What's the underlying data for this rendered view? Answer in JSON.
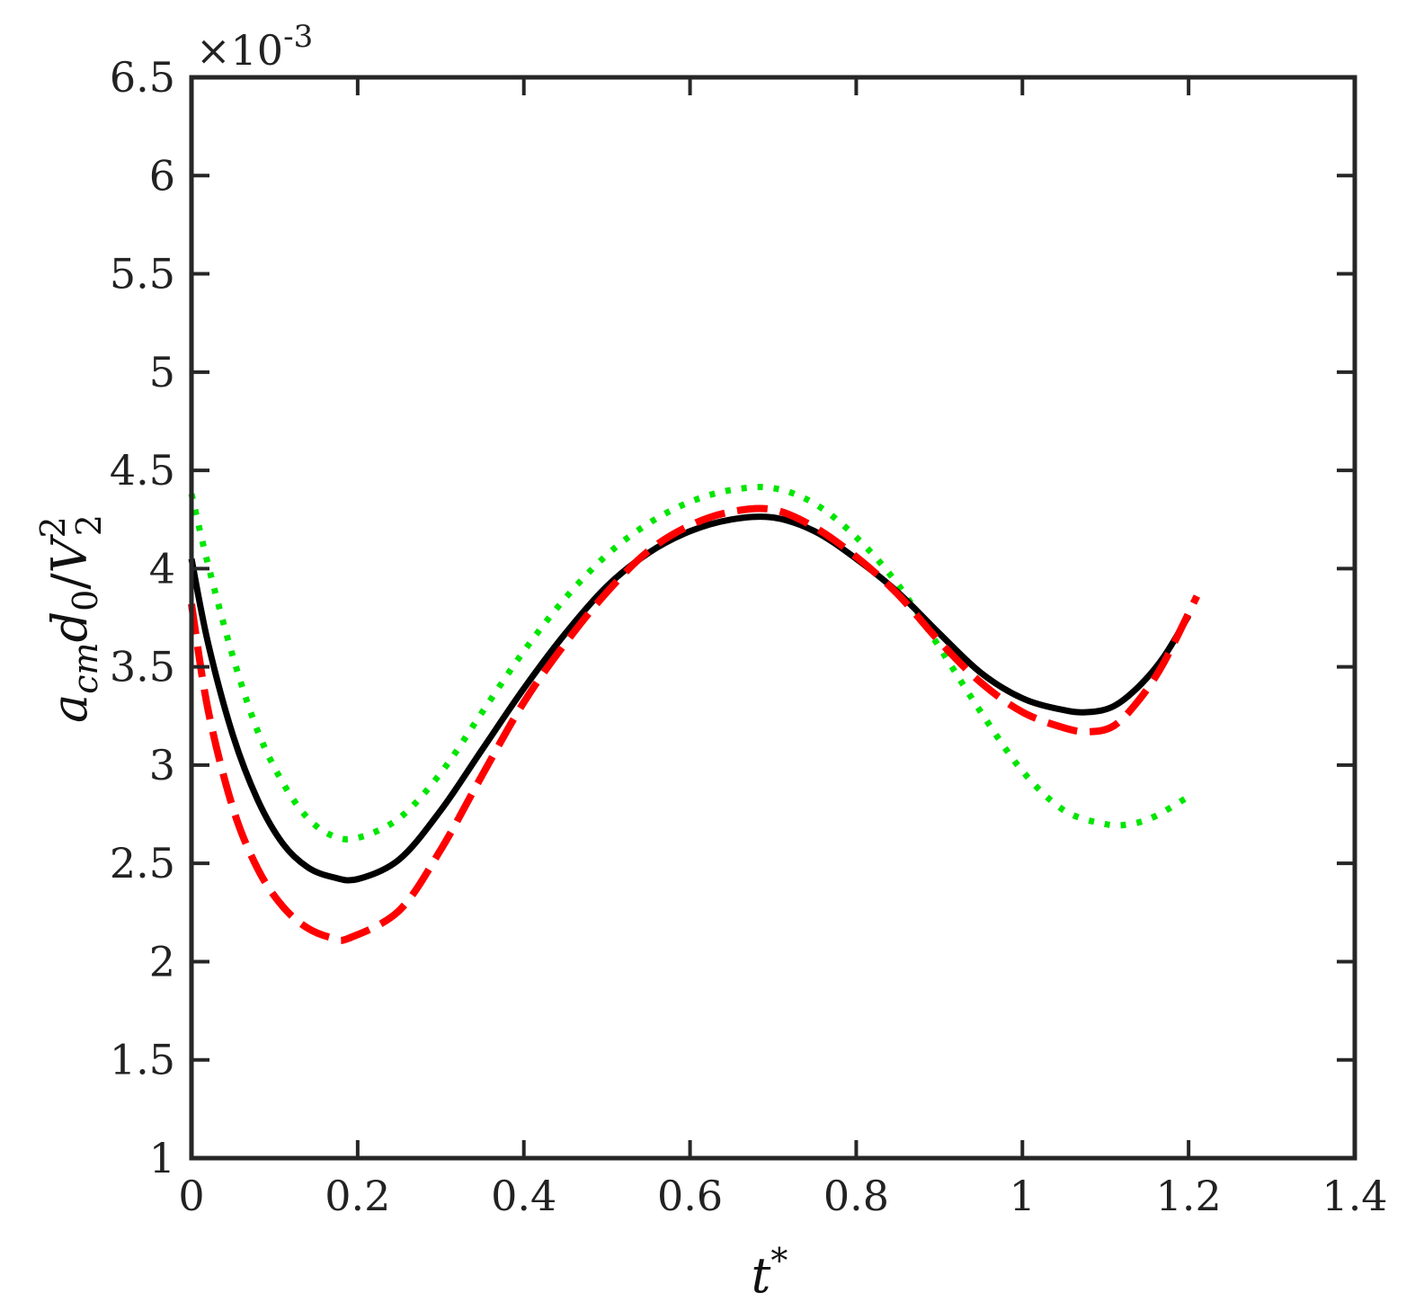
{
  "chart_data": {
    "type": "line",
    "title": "",
    "xlabel": {
      "base": "t",
      "sup": "*"
    },
    "ylabel": {
      "a": "a",
      "a_sub": "cm",
      "d": "d",
      "d_sub": "0",
      "slash": "/",
      "V": "V",
      "V_sub": "2",
      "V_sup": "2"
    },
    "y_exponent": {
      "times": "×10",
      "power": "-3"
    },
    "xlim": [
      0,
      1.4
    ],
    "ylim": [
      1,
      6.5
    ],
    "x_ticks": [
      0,
      0.2,
      0.4,
      0.6,
      0.8,
      1,
      1.2,
      1.4
    ],
    "x_tick_labels": [
      "0",
      "0.2",
      "0.4",
      "0.6",
      "0.8",
      "1",
      "1.2",
      "1.4"
    ],
    "y_ticks": [
      1,
      1.5,
      2,
      2.5,
      3,
      3.5,
      4,
      4.5,
      5,
      5.5,
      6,
      6.5
    ],
    "y_tick_labels": [
      "1",
      "1.5",
      "2",
      "2.5",
      "3",
      "3.5",
      "4",
      "4.5",
      "5",
      "5.5",
      "6",
      "6.5"
    ],
    "grid": false,
    "series": [
      {
        "color": "#00e600",
        "style": "dotted",
        "x": [
          0.0,
          0.02,
          0.05,
          0.08,
          0.11,
          0.14,
          0.17,
          0.2,
          0.25,
          0.3,
          0.35,
          0.4,
          0.45,
          0.5,
          0.55,
          0.6,
          0.65,
          0.7,
          0.75,
          0.8,
          0.85,
          0.9,
          0.95,
          1.0,
          1.05,
          1.1,
          1.13,
          1.16,
          1.2
        ],
        "y": [
          4.38,
          4.02,
          3.55,
          3.17,
          2.91,
          2.73,
          2.64,
          2.63,
          2.73,
          2.96,
          3.27,
          3.58,
          3.85,
          4.07,
          4.23,
          4.34,
          4.4,
          4.41,
          4.33,
          4.16,
          3.92,
          3.6,
          3.27,
          2.97,
          2.77,
          2.7,
          2.7,
          2.74,
          2.84
        ]
      },
      {
        "color": "#000000",
        "style": "solid",
        "x": [
          0.0,
          0.02,
          0.05,
          0.08,
          0.11,
          0.14,
          0.17,
          0.2,
          0.25,
          0.3,
          0.35,
          0.4,
          0.45,
          0.5,
          0.55,
          0.6,
          0.65,
          0.7,
          0.75,
          0.8,
          0.85,
          0.9,
          0.95,
          1.0,
          1.05,
          1.08,
          1.11,
          1.14,
          1.17,
          1.2
        ],
        "y": [
          4.05,
          3.62,
          3.15,
          2.82,
          2.6,
          2.48,
          2.43,
          2.42,
          2.52,
          2.77,
          3.08,
          3.39,
          3.67,
          3.91,
          4.08,
          4.19,
          4.25,
          4.26,
          4.19,
          4.05,
          3.88,
          3.67,
          3.47,
          3.34,
          3.28,
          3.27,
          3.3,
          3.4,
          3.55,
          3.76
        ]
      },
      {
        "color": "#ff0000",
        "style": "dashed",
        "x": [
          0.0,
          0.02,
          0.05,
          0.08,
          0.11,
          0.14,
          0.17,
          0.19,
          0.25,
          0.3,
          0.35,
          0.4,
          0.45,
          0.5,
          0.55,
          0.6,
          0.65,
          0.7,
          0.75,
          0.8,
          0.85,
          0.9,
          0.95,
          1.0,
          1.05,
          1.08,
          1.11,
          1.14,
          1.17,
          1.21
        ],
        "y": [
          3.82,
          3.28,
          2.78,
          2.47,
          2.28,
          2.17,
          2.12,
          2.12,
          2.26,
          2.57,
          2.95,
          3.32,
          3.62,
          3.88,
          4.09,
          4.22,
          4.29,
          4.3,
          4.21,
          4.06,
          3.87,
          3.63,
          3.42,
          3.27,
          3.19,
          3.17,
          3.2,
          3.33,
          3.52,
          3.86
        ]
      }
    ]
  }
}
